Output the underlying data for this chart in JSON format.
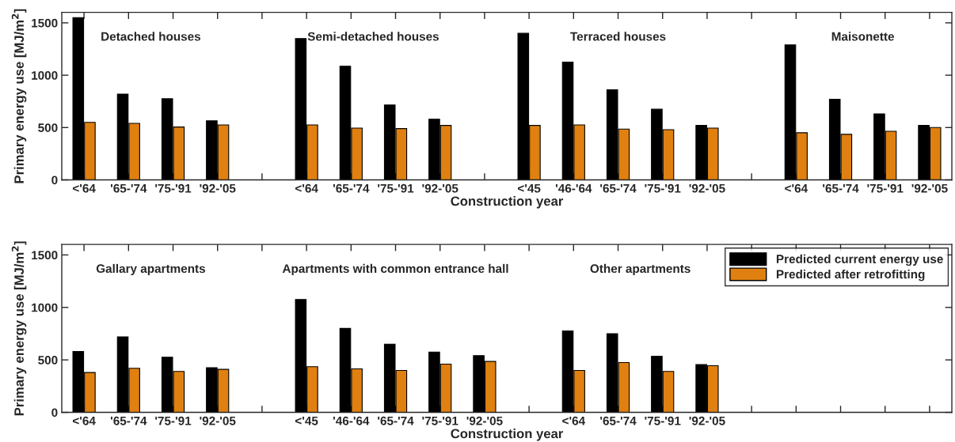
{
  "chart_data": [
    {
      "type": "bar",
      "xlabel": "Construction year",
      "ylabel": "Primary energy use [MJ/m$^{2}$]",
      "categories": [
        "<'64",
        "'65-'74",
        "'75-'91",
        "'92-'05",
        null,
        "<'64",
        "'65-'74",
        "'75-'91",
        "'92-'05",
        null,
        "<'45",
        "'46-'64",
        "'65-'74",
        "'75-'91",
        "'92-'05",
        null,
        "<'64",
        "'65-'74",
        "'75-'91",
        "'92-'05"
      ],
      "series": [
        {
          "color": "#000000",
          "values": [
            1550,
            820,
            775,
            565,
            null,
            1350,
            1085,
            715,
            580,
            null,
            1400,
            1125,
            860,
            675,
            520,
            null,
            1290,
            770,
            630,
            520
          ]
        },
        {
          "color": "#df8010",
          "values": [
            550,
            540,
            505,
            525,
            null,
            525,
            495,
            490,
            520,
            null,
            520,
            525,
            485,
            480,
            495,
            null,
            450,
            435,
            465,
            500
          ]
        }
      ],
      "ylim": [
        0,
        1600
      ],
      "yticks": [
        0,
        500,
        1000,
        1500
      ],
      "grid": false,
      "annotations": [
        "Detached houses",
        "Semi-detached houses",
        "Terraced houses",
        "Maisonette"
      ]
    },
    {
      "type": "bar",
      "xlabel": "Construction year",
      "ylabel": "Primary energy use [MJ/m$^{2}$]",
      "categories": [
        "<'64",
        "'65-'74",
        "'75-'91",
        "'92-'05",
        null,
        "<'45",
        "'46-'64",
        "'65-'74",
        "'75-'91",
        "'92-'05",
        null,
        "<'64",
        "'65-'74",
        "'75-'91",
        "'92-'05",
        null,
        null,
        null,
        null,
        null
      ],
      "series": [
        {
          "name": "Predicted current energy use",
          "color": "#000000",
          "values": [
            580,
            720,
            525,
            425,
            null,
            1075,
            800,
            650,
            575,
            540,
            null,
            775,
            750,
            535,
            455,
            null,
            null,
            null,
            null,
            null
          ]
        },
        {
          "name": "Predicted after retrofitting",
          "color": "#df8010",
          "values": [
            380,
            420,
            390,
            410,
            null,
            435,
            415,
            400,
            460,
            485,
            null,
            400,
            475,
            390,
            445,
            null,
            null,
            null,
            null,
            null
          ]
        }
      ],
      "ylim": [
        0,
        1600
      ],
      "yticks": [
        0,
        500,
        1000,
        1500
      ],
      "grid": false,
      "legend": "top right",
      "annotations": [
        "Gallary apartments",
        "Apartments with common entrance hall",
        "Other apartments"
      ]
    }
  ]
}
